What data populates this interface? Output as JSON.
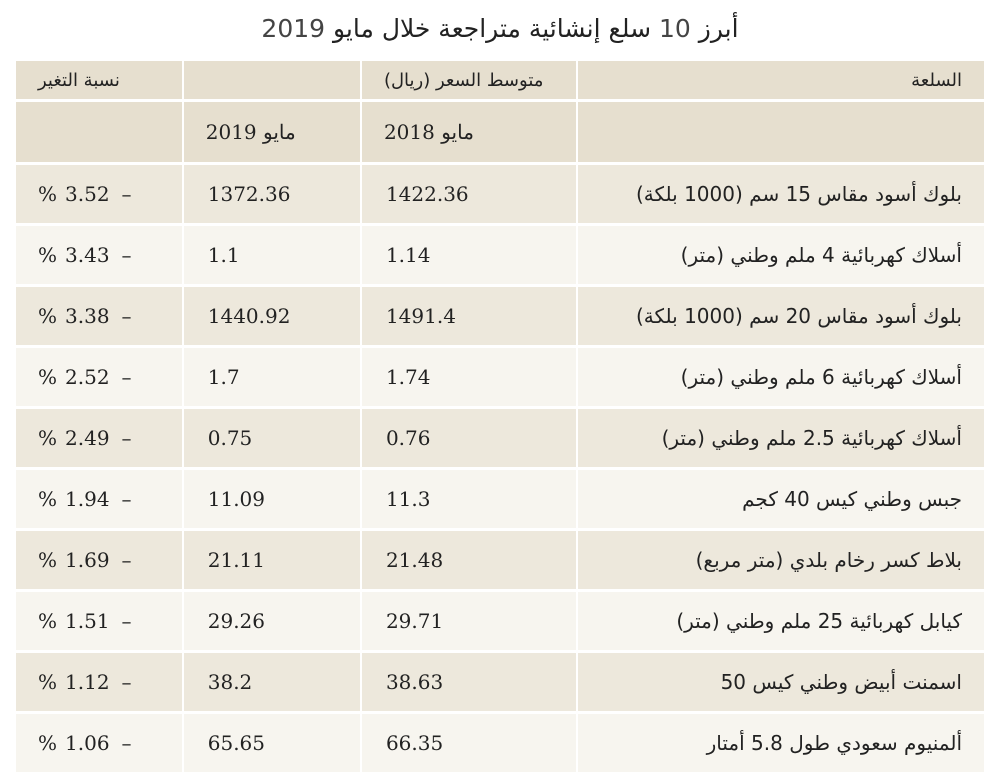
{
  "title": {
    "prefix": "أبرز",
    "number": "10",
    "suffix": "سلع إنشائية متراجعة خلال مايو",
    "year": "2019"
  },
  "header": {
    "item": "السلعة",
    "avg_price": "متوسط السعر (ريال)",
    "change": "نسبة التغير",
    "may_2018": "مايو 2018",
    "may_2019": "مايو 2019"
  },
  "colors": {
    "row_shade": "#ede8dc",
    "row_light": "#f7f5ef",
    "header_shade": "#e6dfcf"
  },
  "rows": [
    {
      "item": "بلوك أسود مقاس 15 سم (1000 بلكة)",
      "p2018": "1422.36",
      "p2019": "1372.36",
      "pct": "%",
      "value": "3.52",
      "dash": "–"
    },
    {
      "item": "أسلاك كهربائية 4 ملم وطني (متر)",
      "p2018": "1.14",
      "p2019": "1.1",
      "pct": "%",
      "value": "3.43",
      "dash": "–"
    },
    {
      "item": "بلوك أسود مقاس 20 سم (1000 بلكة)",
      "p2018": "1491.4",
      "p2019": "1440.92",
      "pct": "%",
      "value": "3.38",
      "dash": "–"
    },
    {
      "item": "أسلاك كهربائية 6 ملم وطني (متر)",
      "p2018": "1.74",
      "p2019": "1.7",
      "pct": "%",
      "value": "2.52",
      "dash": "–"
    },
    {
      "item": "أسلاك كهربائية 2.5 ملم وطني (متر)",
      "p2018": "0.76",
      "p2019": "0.75",
      "pct": "%",
      "value": "2.49",
      "dash": "–"
    },
    {
      "item": "جبس وطني كيس 40 كجم",
      "p2018": "11.3",
      "p2019": "11.09",
      "pct": "%",
      "value": "1.94",
      "dash": "–"
    },
    {
      "item": "بلاط كسر رخام بلدي (متر مربع)",
      "p2018": "21.48",
      "p2019": "21.11",
      "pct": "%",
      "value": "1.69",
      "dash": "–"
    },
    {
      "item": "كيابل كهربائية 25 ملم وطني (متر)",
      "p2018": "29.71",
      "p2019": "29.26",
      "pct": "%",
      "value": "1.51",
      "dash": "–"
    },
    {
      "item": "اسمنت أبيض وطني كيس 50",
      "p2018": "38.63",
      "p2019": "38.2",
      "pct": "%",
      "value": "1.12",
      "dash": "–"
    },
    {
      "item": "ألمنيوم سعودي طول 5.8 أمتار",
      "p2018": "66.35",
      "p2019": "65.65",
      "pct": "%",
      "value": "1.06",
      "dash": "–"
    }
  ]
}
